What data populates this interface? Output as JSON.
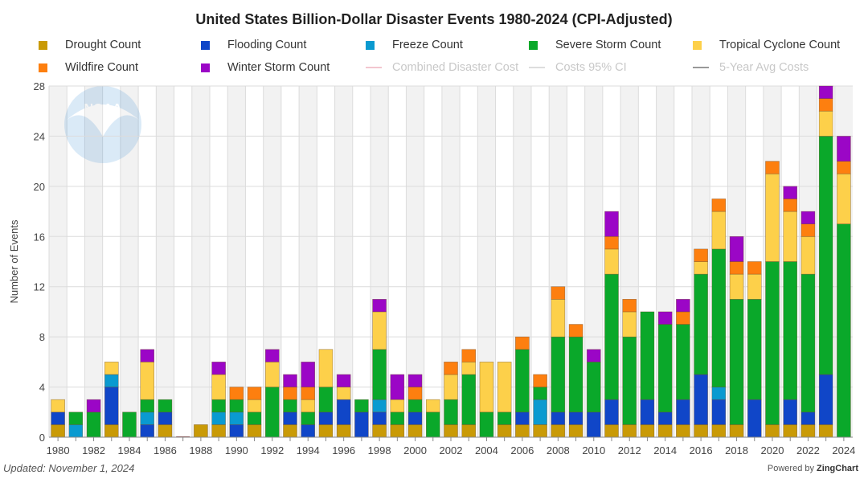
{
  "chart_data": {
    "type": "bar",
    "stacked": true,
    "title": "United States Billion-Dollar Disaster Events 1980-2024 (CPI-Adjusted)",
    "xlabel": "",
    "ylabel": "Number of Events",
    "ylim": [
      0,
      28
    ],
    "yticks": [
      0,
      4,
      8,
      12,
      16,
      20,
      24,
      28
    ],
    "grid": true,
    "legend_position": "top",
    "categories": [
      1980,
      1981,
      1982,
      1983,
      1984,
      1985,
      1986,
      1987,
      1988,
      1989,
      1990,
      1991,
      1992,
      1993,
      1994,
      1995,
      1996,
      1997,
      1998,
      1999,
      2000,
      2001,
      2002,
      2003,
      2004,
      2005,
      2006,
      2007,
      2008,
      2009,
      2010,
      2011,
      2012,
      2013,
      2014,
      2015,
      2016,
      2017,
      2018,
      2019,
      2020,
      2021,
      2022,
      2023,
      2024
    ],
    "xtick_labels": [
      "1980",
      "1982",
      "1984",
      "1986",
      "1988",
      "1990",
      "1992",
      "1994",
      "1996",
      "1998",
      "2000",
      "2002",
      "2004",
      "2006",
      "2008",
      "2010",
      "2012",
      "2014",
      "2016",
      "2018",
      "2020",
      "2022",
      "2024"
    ],
    "series": [
      {
        "name": "Drought Count",
        "color": "#c99a06",
        "values": [
          1,
          0,
          0,
          1,
          0,
          0,
          1,
          0,
          1,
          1,
          0,
          1,
          0,
          1,
          0,
          1,
          1,
          0,
          1,
          1,
          1,
          0,
          1,
          1,
          0,
          1,
          1,
          1,
          1,
          1,
          0,
          1,
          1,
          1,
          1,
          1,
          1,
          1,
          1,
          0,
          1,
          1,
          1,
          1,
          0
        ]
      },
      {
        "name": "Flooding Count",
        "color": "#1046c8",
        "values": [
          1,
          0,
          0,
          3,
          0,
          1,
          1,
          0,
          0,
          0,
          1,
          0,
          0,
          1,
          1,
          1,
          2,
          2,
          1,
          0,
          1,
          0,
          0,
          0,
          0,
          0,
          1,
          0,
          1,
          1,
          2,
          2,
          0,
          2,
          1,
          2,
          4,
          2,
          0,
          3,
          0,
          2,
          1,
          4,
          0
        ]
      },
      {
        "name": "Freeze Count",
        "color": "#0a9ad0",
        "values": [
          0,
          1,
          0,
          1,
          0,
          1,
          0,
          0,
          0,
          1,
          1,
          0,
          0,
          0,
          0,
          0,
          0,
          0,
          1,
          0,
          0,
          0,
          0,
          0,
          0,
          0,
          0,
          2,
          0,
          0,
          0,
          0,
          0,
          0,
          0,
          0,
          0,
          1,
          0,
          0,
          0,
          0,
          0,
          0,
          0
        ]
      },
      {
        "name": "Severe Storm Count",
        "color": "#0aa82a",
        "values": [
          0,
          1,
          2,
          0,
          2,
          1,
          1,
          0,
          0,
          1,
          1,
          1,
          4,
          1,
          1,
          2,
          0,
          1,
          4,
          1,
          1,
          2,
          2,
          4,
          2,
          1,
          5,
          1,
          6,
          6,
          4,
          10,
          7,
          7,
          7,
          6,
          8,
          11,
          10,
          8,
          13,
          11,
          11,
          19,
          17
        ]
      },
      {
        "name": "Tropical Cyclone Count",
        "color": "#fdd04a",
        "values": [
          1,
          0,
          0,
          1,
          0,
          3,
          0,
          0,
          0,
          2,
          0,
          1,
          2,
          0,
          1,
          3,
          1,
          0,
          3,
          1,
          0,
          1,
          2,
          1,
          4,
          4,
          0,
          0,
          3,
          0,
          0,
          2,
          2,
          0,
          0,
          0,
          1,
          3,
          2,
          2,
          7,
          4,
          3,
          2,
          4
        ]
      },
      {
        "name": "Wildfire Count",
        "color": "#fd7f0f",
        "values": [
          0,
          0,
          0,
          0,
          0,
          0,
          0,
          0,
          0,
          0,
          1,
          1,
          0,
          1,
          1,
          0,
          0,
          0,
          0,
          0,
          1,
          0,
          1,
          1,
          0,
          0,
          1,
          1,
          1,
          1,
          0,
          1,
          1,
          0,
          0,
          1,
          1,
          1,
          1,
          1,
          1,
          1,
          1,
          1,
          1
        ]
      },
      {
        "name": "Winter Storm Count",
        "color": "#9b06c6",
        "values": [
          0,
          0,
          1,
          0,
          0,
          1,
          0,
          0,
          0,
          1,
          0,
          0,
          1,
          1,
          2,
          0,
          1,
          0,
          1,
          2,
          1,
          0,
          0,
          0,
          0,
          0,
          0,
          0,
          0,
          0,
          1,
          2,
          0,
          0,
          1,
          1,
          0,
          0,
          2,
          0,
          0,
          1,
          1,
          1,
          2
        ]
      }
    ],
    "hidden_series": [
      {
        "name": "Combined Disaster Cost",
        "color": "#f3c6cf"
      },
      {
        "name": "Costs 95% CI",
        "color": "#dddddd"
      },
      {
        "name": "5-Year Avg Costs",
        "color": "#999999"
      }
    ]
  },
  "watermark": "NOAA",
  "footer": {
    "updated": "Updated: November 1, 2024",
    "powered_prefix": "Powered by ",
    "powered_brand": "ZingChart"
  }
}
